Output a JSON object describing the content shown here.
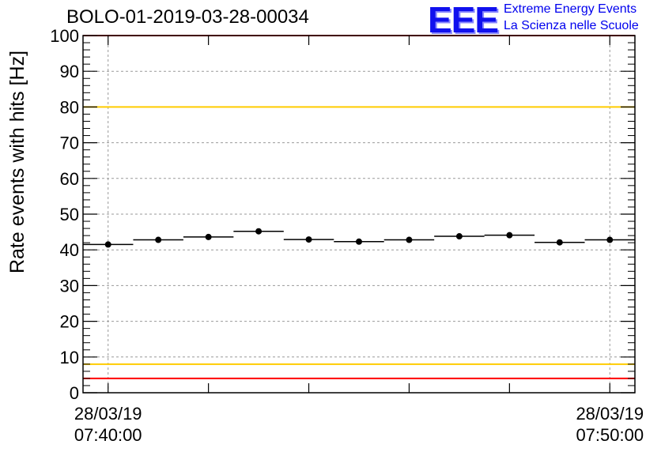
{
  "title": "BOLO-01-2019-03-28-00034",
  "logo": {
    "mark": "EEE",
    "line1": "Extreme Energy Events",
    "line2": "La Scienza nelle Scuole",
    "color": "#0000ee"
  },
  "chart_data": {
    "type": "scatter",
    "title": "BOLO-01-2019-03-28-00034",
    "ylabel": "Rate events with hits [Hz]",
    "xlabel": "",
    "ylim": [
      0,
      100
    ],
    "yticks": [
      0,
      10,
      20,
      30,
      40,
      50,
      60,
      70,
      80,
      90,
      100
    ],
    "xlim": [
      "28/03/19 07:39:30",
      "28/03/19 07:50:30"
    ],
    "xtick_labels": [
      {
        "date": "28/03/19",
        "time": "07:40:00"
      },
      {
        "date": "28/03/19",
        "time": "07:50:00"
      }
    ],
    "grid": true,
    "series": [
      {
        "x": [
          "07:40:00",
          "07:41:00",
          "07:42:00",
          "07:43:00",
          "07:44:00",
          "07:45:00",
          "07:46:00",
          "07:47:00",
          "07:48:00",
          "07:49:00",
          "07:50:00"
        ],
        "values": [
          41.5,
          42.8,
          43.6,
          45.2,
          42.9,
          42.3,
          42.8,
          43.8,
          44.1,
          42.1,
          42.8
        ],
        "bin_width_minutes": 1,
        "color": "#000000"
      }
    ],
    "reference_lines": [
      {
        "y": 100,
        "color": "#ff0000"
      },
      {
        "y": 80,
        "color": "#ffcc00"
      },
      {
        "y": 8,
        "color": "#ffcc00"
      },
      {
        "y": 4,
        "color": "#ff0000"
      }
    ]
  }
}
